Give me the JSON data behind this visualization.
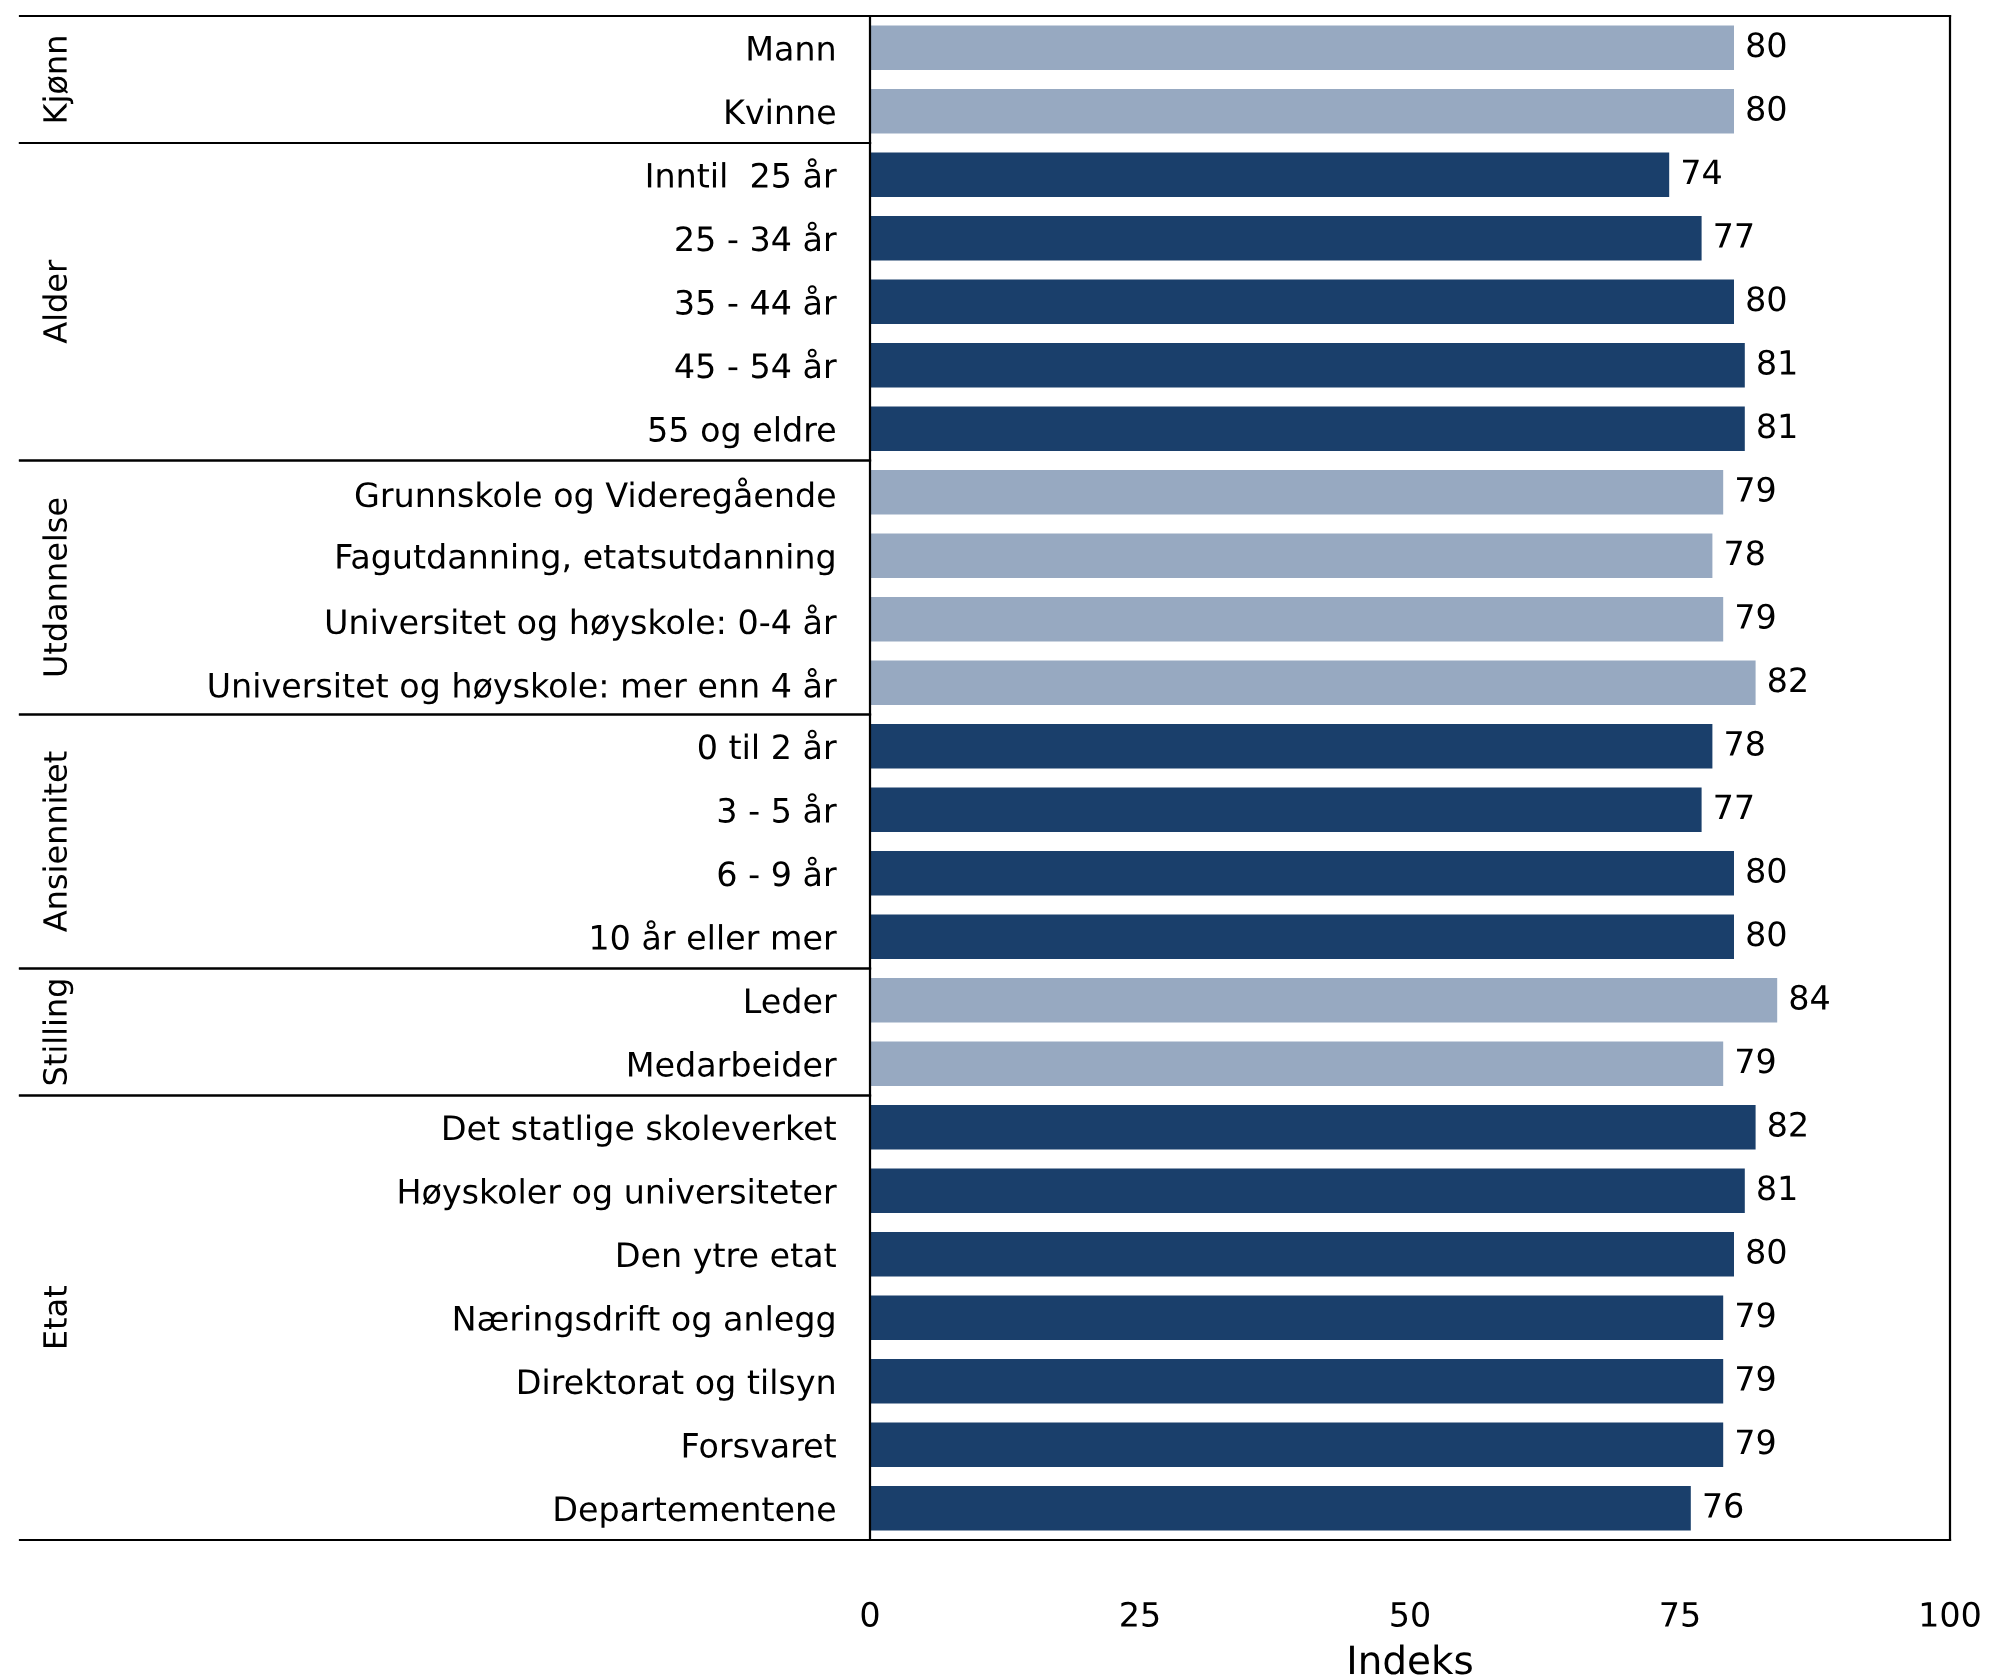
{
  "chart_data": {
    "type": "bar",
    "orientation": "horizontal",
    "xlabel": "Indeks",
    "categories": [
      "Mann",
      "Kvinne",
      "Inntil  25 år",
      "25 - 34 år",
      "35 - 44 år",
      "45 - 54 år",
      "55 og eldre",
      "Grunnskole og Videregående",
      "Fagutdanning, etatsutdanning",
      "Universitet og høyskole: 0-4 år",
      "Universitet og høyskole: mer enn 4 år",
      "0 til 2 år",
      "3 - 5 år",
      "6 - 9 år",
      "10 år eller mer",
      "Leder",
      "Medarbeider",
      "Det statlige skoleverket",
      "Høyskoler og universiteter",
      "Den ytre etat",
      "Næringsdrift og anlegg",
      "Direktorat og tilsyn",
      "Forsvaret",
      "Departementene"
    ],
    "values": [
      80,
      80,
      74,
      77,
      80,
      81,
      81,
      79,
      78,
      79,
      82,
      78,
      77,
      80,
      80,
      84,
      79,
      82,
      81,
      80,
      79,
      79,
      79,
      76
    ],
    "colors": [
      "#97a9c1",
      "#97a9c1",
      "#1a3f6b",
      "#1a3f6b",
      "#1a3f6b",
      "#1a3f6b",
      "#1a3f6b",
      "#97a9c1",
      "#97a9c1",
      "#97a9c1",
      "#97a9c1",
      "#1a3f6b",
      "#1a3f6b",
      "#1a3f6b",
      "#1a3f6b",
      "#97a9c1",
      "#97a9c1",
      "#1a3f6b",
      "#1a3f6b",
      "#1a3f6b",
      "#1a3f6b",
      "#1a3f6b",
      "#1a3f6b",
      "#1a3f6b"
    ],
    "data_labels": true,
    "xlim": [
      0,
      100
    ],
    "xticks": [
      0,
      25,
      50,
      75,
      100
    ],
    "grid": false,
    "annotations": [
      "Kjønn",
      "Alder",
      "Utdannelse",
      "Ansiennitet",
      "Stilling",
      "Etat"
    ]
  }
}
